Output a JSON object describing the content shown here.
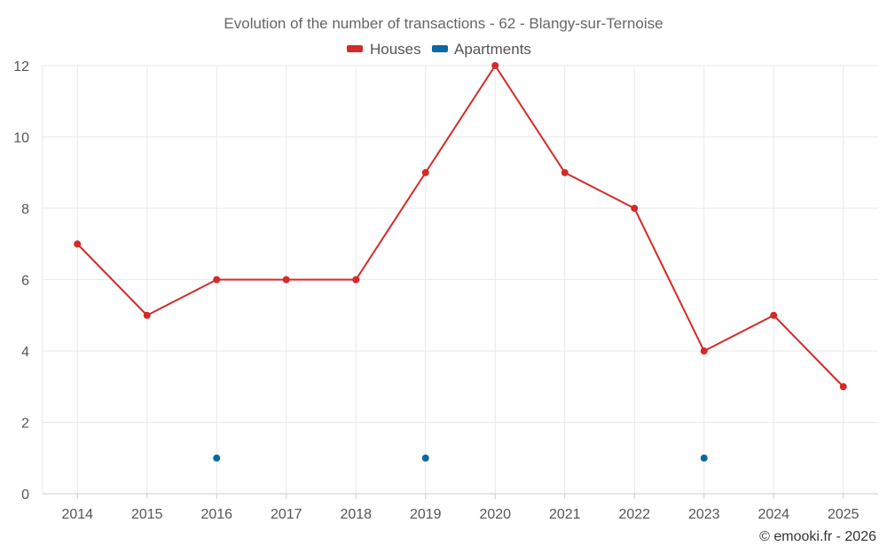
{
  "chart_data": {
    "type": "line",
    "title": "Evolution of the number of transactions - 62 - Blangy-sur-Ternoise",
    "categories": [
      "2014",
      "2015",
      "2016",
      "2017",
      "2018",
      "2019",
      "2020",
      "2021",
      "2022",
      "2023",
      "2024",
      "2025"
    ],
    "ylim": [
      0,
      12
    ],
    "yticks": [
      0,
      2,
      4,
      6,
      8,
      10,
      12
    ],
    "grid": true,
    "legend_position": "top-center",
    "series": [
      {
        "name": "Houses",
        "color": "#d32a2a",
        "line": true,
        "values": [
          7,
          5,
          6,
          6,
          6,
          9,
          12,
          9,
          8,
          4,
          5,
          3
        ]
      },
      {
        "name": "Apartments",
        "color": "#086aa0",
        "line": false,
        "values": [
          null,
          null,
          1,
          null,
          null,
          1,
          null,
          null,
          null,
          1,
          null,
          null
        ]
      }
    ]
  },
  "footer": "© emooki.fr - 2026"
}
